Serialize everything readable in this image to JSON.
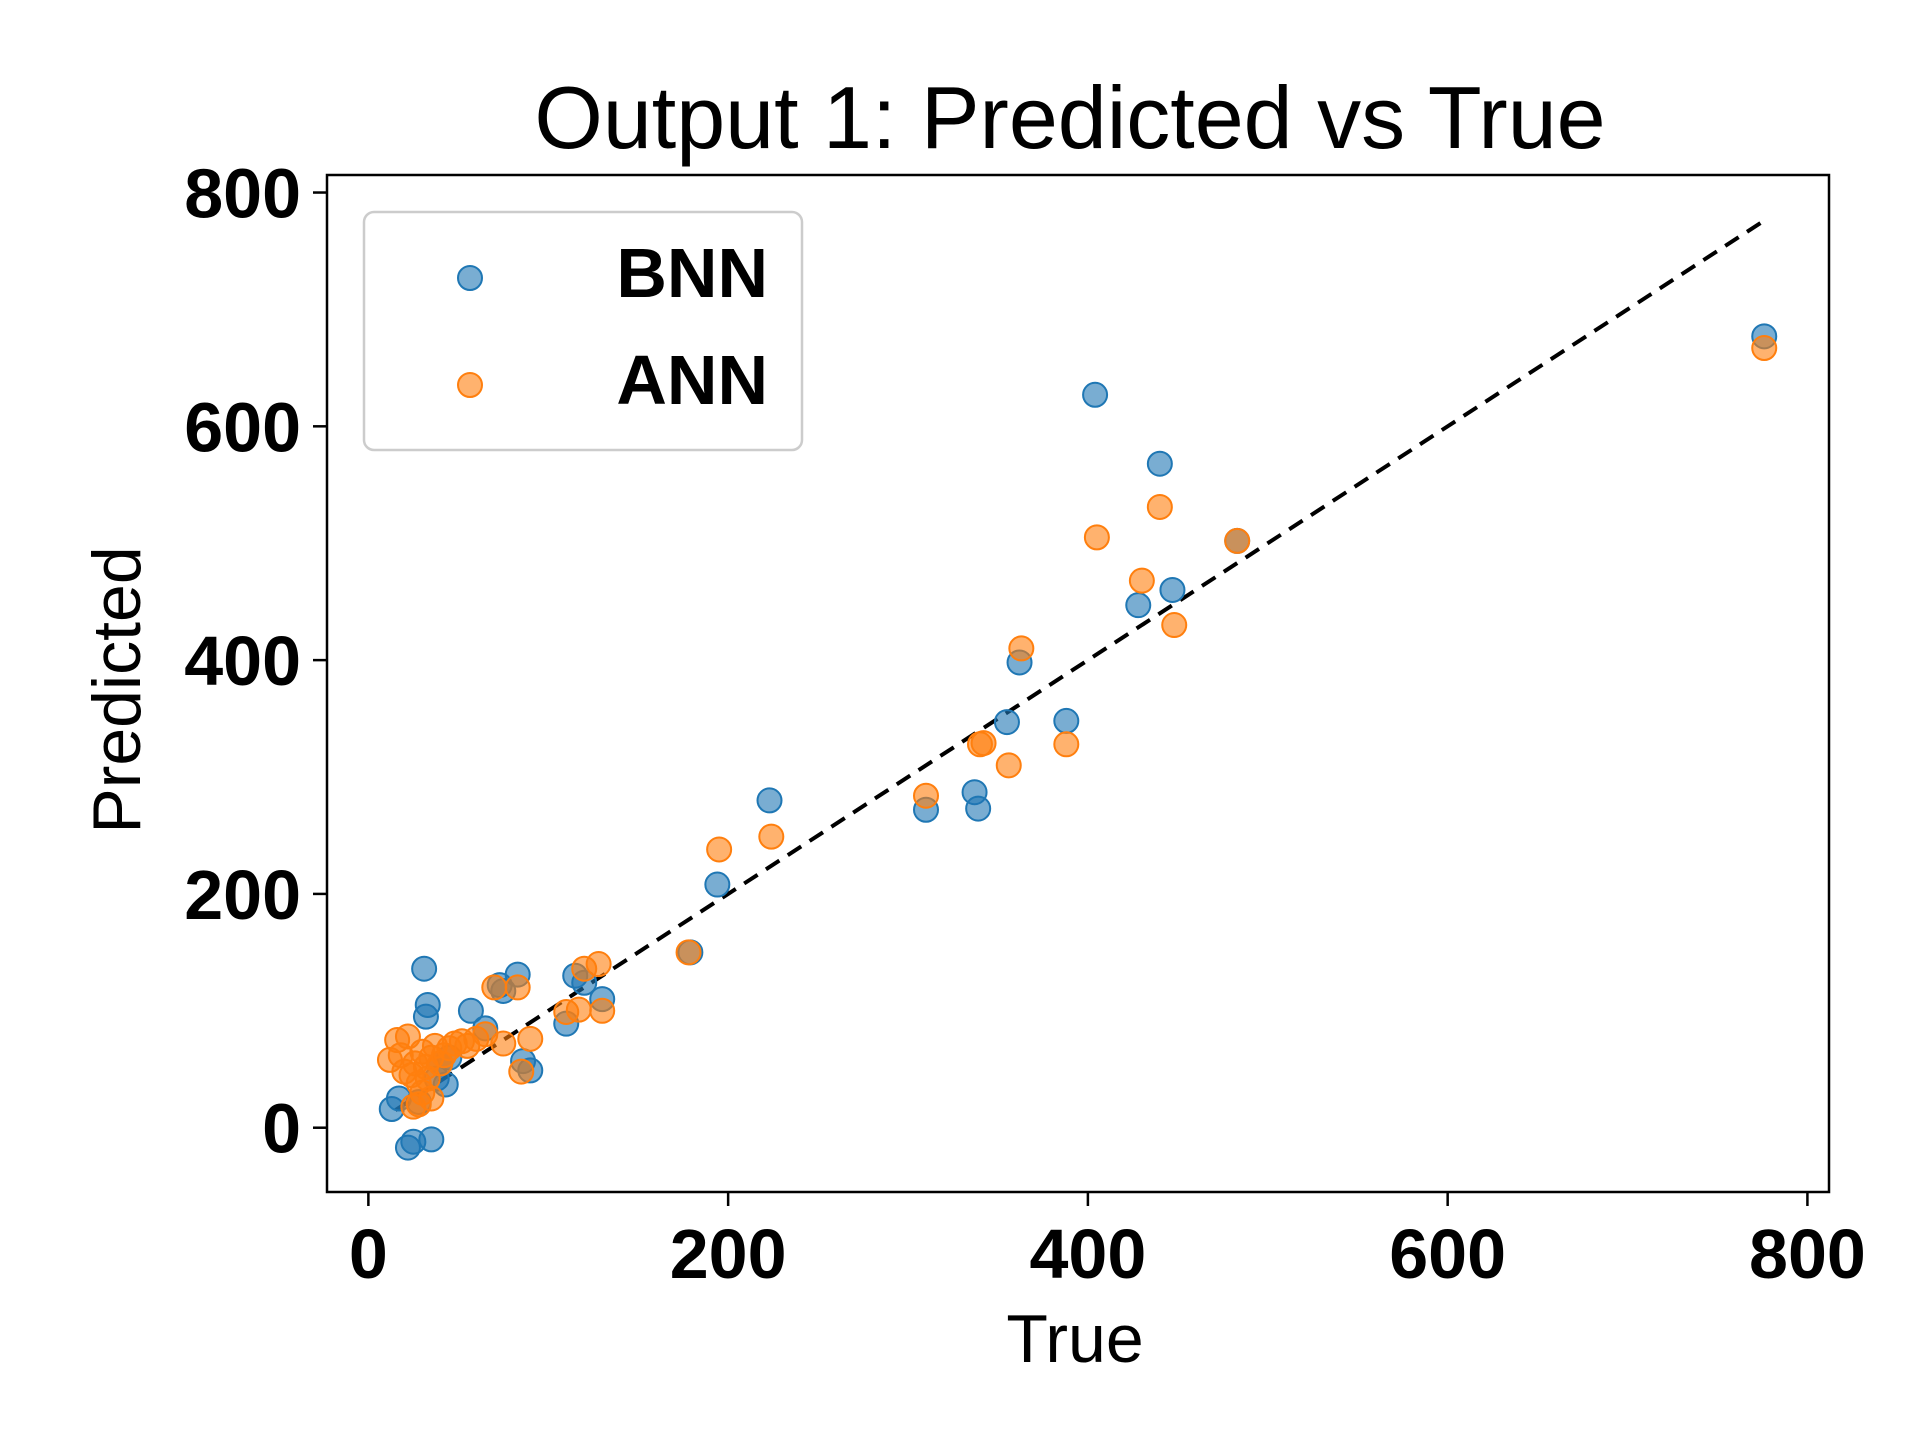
{
  "chart_data": {
    "type": "scatter",
    "title": "Output 1: Predicted vs True",
    "xlabel": "True",
    "ylabel": "Predicted",
    "xlim": [
      -23,
      812
    ],
    "ylim": [
      -55,
      815
    ],
    "xticks": [
      0,
      200,
      400,
      600,
      800
    ],
    "yticks": [
      0,
      200,
      400,
      600,
      800
    ],
    "grid": false,
    "legend_position": "top-left",
    "reference_line": {
      "style": "dashed",
      "color": "#000000",
      "from": [
        15,
        15
      ],
      "to": [
        776,
        776
      ]
    },
    "series": [
      {
        "name": "BNN",
        "color": "#1f77b4",
        "points": [
          [
            13,
            16
          ],
          [
            17,
            25
          ],
          [
            22,
            -17
          ],
          [
            25,
            -12
          ],
          [
            28,
            22
          ],
          [
            31,
            136
          ],
          [
            32,
            95
          ],
          [
            33,
            105
          ],
          [
            35,
            -10
          ],
          [
            38,
            42
          ],
          [
            40,
            55
          ],
          [
            43,
            37
          ],
          [
            45,
            60
          ],
          [
            57,
            100
          ],
          [
            65,
            85
          ],
          [
            73,
            122
          ],
          [
            75,
            117
          ],
          [
            83,
            131
          ],
          [
            86,
            57
          ],
          [
            90,
            49
          ],
          [
            110,
            89
          ],
          [
            115,
            130
          ],
          [
            120,
            124
          ],
          [
            130,
            110
          ],
          [
            179,
            150
          ],
          [
            194,
            208
          ],
          [
            223,
            280
          ],
          [
            310,
            272
          ],
          [
            337,
            287
          ],
          [
            339,
            273
          ],
          [
            355,
            347
          ],
          [
            362,
            398
          ],
          [
            388,
            348
          ],
          [
            404,
            627
          ],
          [
            428,
            447
          ],
          [
            440,
            568
          ],
          [
            447,
            460
          ],
          [
            483,
            502
          ],
          [
            776,
            677
          ]
        ]
      },
      {
        "name": "ANN",
        "color": "#ff7f0e",
        "points": [
          [
            12,
            58
          ],
          [
            16,
            75
          ],
          [
            18,
            62
          ],
          [
            20,
            48
          ],
          [
            22,
            78
          ],
          [
            24,
            45
          ],
          [
            25,
            18
          ],
          [
            26,
            55
          ],
          [
            28,
            38
          ],
          [
            28,
            20
          ],
          [
            30,
            65
          ],
          [
            30,
            30
          ],
          [
            32,
            52
          ],
          [
            33,
            42
          ],
          [
            35,
            60
          ],
          [
            35,
            25
          ],
          [
            37,
            70
          ],
          [
            40,
            55
          ],
          [
            42,
            62
          ],
          [
            45,
            68
          ],
          [
            48,
            72
          ],
          [
            52,
            74
          ],
          [
            55,
            70
          ],
          [
            60,
            76
          ],
          [
            65,
            80
          ],
          [
            70,
            120
          ],
          [
            75,
            72
          ],
          [
            83,
            120
          ],
          [
            85,
            48
          ],
          [
            90,
            76
          ],
          [
            110,
            99
          ],
          [
            117,
            101
          ],
          [
            120,
            136
          ],
          [
            128,
            140
          ],
          [
            130,
            100
          ],
          [
            178,
            150
          ],
          [
            195,
            238
          ],
          [
            224,
            249
          ],
          [
            310,
            284
          ],
          [
            340,
            328
          ],
          [
            342,
            329
          ],
          [
            356,
            310
          ],
          [
            363,
            410
          ],
          [
            388,
            328
          ],
          [
            405,
            505
          ],
          [
            430,
            468
          ],
          [
            440,
            531
          ],
          [
            448,
            430
          ],
          [
            483,
            502
          ],
          [
            776,
            667
          ]
        ]
      }
    ]
  }
}
